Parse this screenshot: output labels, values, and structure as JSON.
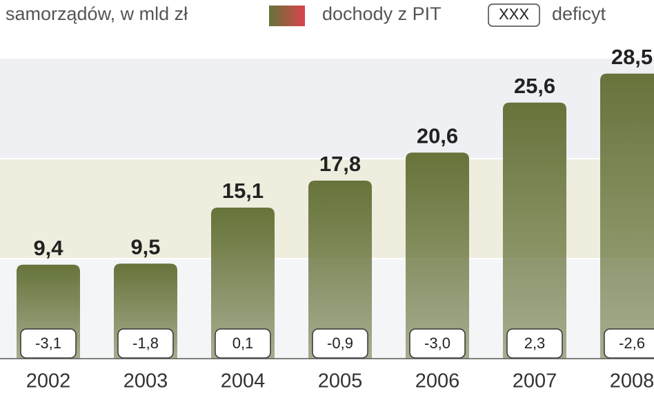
{
  "chart_data": {
    "type": "bar",
    "title": "samorządów, w mld zł",
    "categories": [
      "2002",
      "2003",
      "2004",
      "2005",
      "2006",
      "2007",
      "2008"
    ],
    "series": [
      {
        "name": "dochody z PIT",
        "color": "#66733a",
        "values": [
          9.4,
          9.5,
          15.1,
          17.8,
          20.6,
          25.6,
          28.5
        ],
        "value_labels": [
          "9,4",
          "9,5",
          "15,1",
          "17,8",
          "20,6",
          "25,6",
          "28,5"
        ]
      }
    ],
    "deficit": {
      "name": "deficyt",
      "legend_sample": "XXX",
      "values": [
        -3.1,
        -1.8,
        0.1,
        -0.9,
        -3.0,
        2.3,
        -2.6
      ],
      "value_labels": [
        "-3,1",
        "-1,8",
        "0,1",
        "-0,9",
        "-3,0",
        "2,3",
        "-2,6"
      ]
    },
    "ylim": [
      0,
      30
    ]
  }
}
